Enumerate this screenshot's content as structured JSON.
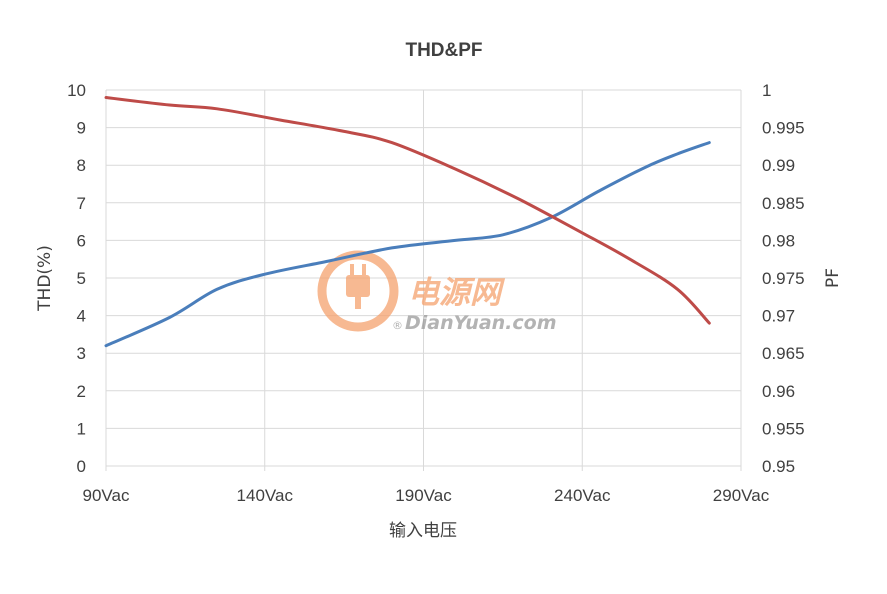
{
  "chart_data": {
    "type": "line",
    "title": "THD&PF",
    "xlabel": "输入电压",
    "ylabel_left": "THD(%)",
    "ylabel_right": "PF",
    "x_ticks": [
      "90Vac",
      "140Vac",
      "190Vac",
      "240Vac",
      "290Vac"
    ],
    "xlim": [
      90,
      290
    ],
    "ylim_left": [
      0,
      10
    ],
    "ylim_right": [
      0.95,
      1.0
    ],
    "y_ticks_left": [
      "0",
      "1",
      "2",
      "3",
      "4",
      "5",
      "6",
      "7",
      "8",
      "9",
      "10"
    ],
    "y_ticks_right": [
      "0.95",
      "0.955",
      "0.96",
      "0.965",
      "0.97",
      "0.975",
      "0.98",
      "0.985",
      "0.99",
      "0.995",
      "1"
    ],
    "grid": true,
    "legend": "none",
    "series": [
      {
        "axis": "left",
        "color": "#4a7ebb",
        "x": [
          90,
          110,
          125,
          140,
          160,
          180,
          200,
          215,
          230,
          245,
          260,
          270,
          280
        ],
        "y": [
          3.2,
          3.95,
          4.7,
          5.1,
          5.45,
          5.8,
          6.0,
          6.15,
          6.6,
          7.3,
          7.95,
          8.3,
          8.6
        ]
      },
      {
        "axis": "right",
        "color": "#be4b48",
        "x": [
          90,
          110,
          125,
          145,
          165,
          180,
          200,
          220,
          240,
          255,
          270,
          280
        ],
        "y": [
          0.999,
          0.998,
          0.9975,
          0.996,
          0.9945,
          0.993,
          0.9895,
          0.9855,
          0.981,
          0.9775,
          0.9735,
          0.969
        ]
      }
    ]
  },
  "watermark": {
    "text_cn": "电源网",
    "text_en": "DianYuan.com",
    "registered": "®",
    "color": "#f5a26e",
    "icon": "plug-icon"
  }
}
